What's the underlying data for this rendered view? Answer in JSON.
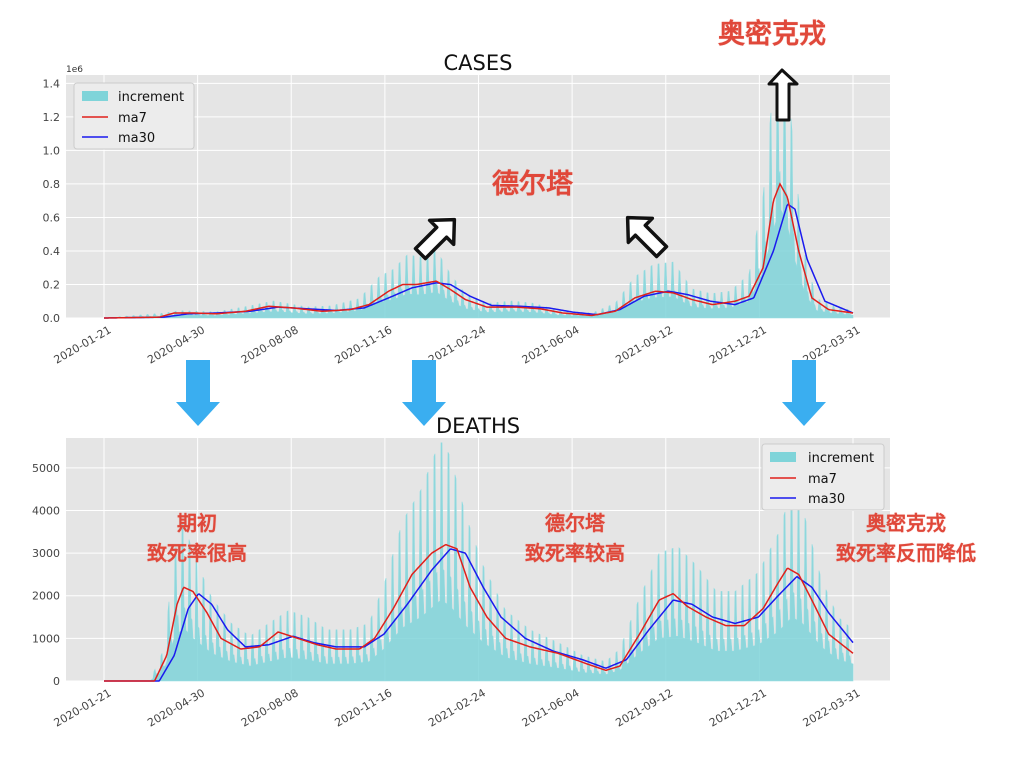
{
  "chart_data": [
    {
      "type": "area",
      "title": "CASES",
      "y_offset_label": "1e6",
      "xlabel": "",
      "ylabel": "",
      "ylim": [
        0,
        1.45
      ],
      "yticks": [
        "0.0",
        "0.2",
        "0.4",
        "0.6",
        "0.8",
        "1.0",
        "1.2",
        "1.4"
      ],
      "xticks": [
        "2020-01-21",
        "2020-04-30",
        "2020-08-08",
        "2020-11-16",
        "2021-02-24",
        "2021-06-04",
        "2021-09-12",
        "2021-12-21",
        "2022-03-31"
      ],
      "grid": true,
      "legend_position": "top-left",
      "series": [
        {
          "name": "increment",
          "kind": "bar",
          "color": "#7fd4d9",
          "points": [
            [
              "2020-01-21",
              0
            ],
            [
              "2020-03-25",
              0.02
            ],
            [
              "2020-04-10",
              0.03
            ],
            [
              "2020-05-20",
              0.025
            ],
            [
              "2020-06-25",
              0.05
            ],
            [
              "2020-07-20",
              0.07
            ],
            [
              "2020-08-25",
              0.045
            ],
            [
              "2020-09-20",
              0.05
            ],
            [
              "2020-10-20",
              0.08
            ],
            [
              "2020-11-10",
              0.17
            ],
            [
              "2020-11-25",
              0.2
            ],
            [
              "2020-12-10",
              0.26
            ],
            [
              "2020-12-25",
              0.25
            ],
            [
              "2021-01-10",
              0.28
            ],
            [
              "2021-01-25",
              0.18
            ],
            [
              "2021-02-10",
              0.1
            ],
            [
              "2021-03-05",
              0.06
            ],
            [
              "2021-04-01",
              0.07
            ],
            [
              "2021-04-25",
              0.06
            ],
            [
              "2021-05-20",
              0.03
            ],
            [
              "2021-06-25",
              0.02
            ],
            [
              "2021-07-20",
              0.06
            ],
            [
              "2021-08-10",
              0.17
            ],
            [
              "2021-08-30",
              0.22
            ],
            [
              "2021-09-20",
              0.23
            ],
            [
              "2021-10-10",
              0.12
            ],
            [
              "2021-10-30",
              0.1
            ],
            [
              "2021-11-20",
              0.11
            ],
            [
              "2021-12-10",
              0.18
            ],
            [
              "2021-12-25",
              0.5
            ],
            [
              "2022-01-05",
              0.95
            ],
            [
              "2022-01-12",
              1.2
            ],
            [
              "2022-01-20",
              1.0
            ],
            [
              "2022-01-28",
              0.62
            ],
            [
              "2022-02-08",
              0.25
            ],
            [
              "2022-02-20",
              0.08
            ],
            [
              "2022-03-10",
              0.05
            ],
            [
              "2022-03-31",
              0.03
            ]
          ]
        },
        {
          "name": "ma7",
          "kind": "line",
          "color": "#e0201b",
          "points": [
            [
              "2020-01-21",
              0
            ],
            [
              "2020-03-20",
              0.005
            ],
            [
              "2020-04-05",
              0.03
            ],
            [
              "2020-04-25",
              0.03
            ],
            [
              "2020-05-20",
              0.025
            ],
            [
              "2020-06-20",
              0.04
            ],
            [
              "2020-07-15",
              0.07
            ],
            [
              "2020-08-10",
              0.06
            ],
            [
              "2020-09-10",
              0.04
            ],
            [
              "2020-10-10",
              0.05
            ],
            [
              "2020-10-30",
              0.08
            ],
            [
              "2020-11-20",
              0.16
            ],
            [
              "2020-12-05",
              0.2
            ],
            [
              "2020-12-20",
              0.2
            ],
            [
              "2021-01-10",
              0.22
            ],
            [
              "2021-01-25",
              0.17
            ],
            [
              "2021-02-10",
              0.11
            ],
            [
              "2021-03-05",
              0.065
            ],
            [
              "2021-04-05",
              0.065
            ],
            [
              "2021-05-01",
              0.055
            ],
            [
              "2021-05-25",
              0.03
            ],
            [
              "2021-06-25",
              0.015
            ],
            [
              "2021-07-20",
              0.04
            ],
            [
              "2021-08-10",
              0.12
            ],
            [
              "2021-09-01",
              0.16
            ],
            [
              "2021-09-20",
              0.15
            ],
            [
              "2021-10-10",
              0.11
            ],
            [
              "2021-11-01",
              0.08
            ],
            [
              "2021-11-25",
              0.1
            ],
            [
              "2021-12-10",
              0.13
            ],
            [
              "2021-12-25",
              0.3
            ],
            [
              "2022-01-05",
              0.7
            ],
            [
              "2022-01-12",
              0.8
            ],
            [
              "2022-01-20",
              0.72
            ],
            [
              "2022-02-01",
              0.4
            ],
            [
              "2022-02-15",
              0.12
            ],
            [
              "2022-03-05",
              0.05
            ],
            [
              "2022-03-31",
              0.03
            ]
          ]
        },
        {
          "name": "ma30",
          "kind": "line",
          "color": "#1a1aee",
          "points": [
            [
              "2020-01-21",
              0
            ],
            [
              "2020-03-25",
              0.005
            ],
            [
              "2020-04-20",
              0.025
            ],
            [
              "2020-05-20",
              0.03
            ],
            [
              "2020-06-25",
              0.04
            ],
            [
              "2020-07-25",
              0.065
            ],
            [
              "2020-08-25",
              0.055
            ],
            [
              "2020-09-25",
              0.045
            ],
            [
              "2020-10-25",
              0.06
            ],
            [
              "2020-11-20",
              0.12
            ],
            [
              "2020-12-15",
              0.18
            ],
            [
              "2021-01-10",
              0.21
            ],
            [
              "2021-01-25",
              0.2
            ],
            [
              "2021-02-15",
              0.13
            ],
            [
              "2021-03-10",
              0.075
            ],
            [
              "2021-04-10",
              0.07
            ],
            [
              "2021-05-10",
              0.06
            ],
            [
              "2021-06-05",
              0.035
            ],
            [
              "2021-07-01",
              0.02
            ],
            [
              "2021-07-25",
              0.05
            ],
            [
              "2021-08-20",
              0.13
            ],
            [
              "2021-09-15",
              0.16
            ],
            [
              "2021-10-05",
              0.14
            ],
            [
              "2021-10-30",
              0.1
            ],
            [
              "2021-11-25",
              0.08
            ],
            [
              "2021-12-15",
              0.12
            ],
            [
              "2022-01-05",
              0.4
            ],
            [
              "2022-01-20",
              0.68
            ],
            [
              "2022-01-28",
              0.65
            ],
            [
              "2022-02-10",
              0.35
            ],
            [
              "2022-03-01",
              0.1
            ],
            [
              "2022-03-31",
              0.03
            ]
          ]
        }
      ]
    },
    {
      "type": "area",
      "title": "DEATHS",
      "xlabel": "",
      "ylabel": "",
      "ylim": [
        0,
        5700
      ],
      "yticks": [
        "0",
        "1000",
        "2000",
        "3000",
        "4000",
        "5000"
      ],
      "xticks": [
        "2020-01-21",
        "2020-04-30",
        "2020-08-08",
        "2020-11-16",
        "2021-02-24",
        "2021-06-04",
        "2021-09-12",
        "2021-12-21",
        "2022-03-31"
      ],
      "grid": true,
      "legend_position": "top-right",
      "series": [
        {
          "name": "increment",
          "kind": "bar",
          "color": "#7fd4d9",
          "points": [
            [
              "2020-01-21",
              0
            ],
            [
              "2020-03-10",
              0
            ],
            [
              "2020-03-25",
              500
            ],
            [
              "2020-04-05",
              2000
            ],
            [
              "2020-04-15",
              2500
            ],
            [
              "2020-04-25",
              2000
            ],
            [
              "2020-05-15",
              1300
            ],
            [
              "2020-06-05",
              900
            ],
            [
              "2020-06-25",
              700
            ],
            [
              "2020-07-15",
              900
            ],
            [
              "2020-08-05",
              1100
            ],
            [
              "2020-08-25",
              1000
            ],
            [
              "2020-09-15",
              800
            ],
            [
              "2020-10-10",
              800
            ],
            [
              "2020-10-30",
              900
            ],
            [
              "2020-11-15",
              1500
            ],
            [
              "2020-12-05",
              2500
            ],
            [
              "2020-12-25",
              3000
            ],
            [
              "2021-01-15",
              3800
            ],
            [
              "2021-01-25",
              3500
            ],
            [
              "2021-02-10",
              2600
            ],
            [
              "2021-03-01",
              1800
            ],
            [
              "2021-03-25",
              1100
            ],
            [
              "2021-04-20",
              800
            ],
            [
              "2021-05-20",
              600
            ],
            [
              "2021-06-15",
              400
            ],
            [
              "2021-07-10",
              300
            ],
            [
              "2021-07-25",
              500
            ],
            [
              "2021-08-15",
              1300
            ],
            [
              "2021-09-05",
              2000
            ],
            [
              "2021-09-25",
              2100
            ],
            [
              "2021-10-15",
              1800
            ],
            [
              "2021-11-05",
              1400
            ],
            [
              "2021-11-25",
              1400
            ],
            [
              "2021-12-20",
              1700
            ],
            [
              "2022-01-10",
              2300
            ],
            [
              "2022-01-25",
              3000
            ],
            [
              "2022-02-05",
              2700
            ],
            [
              "2022-02-25",
              1600
            ],
            [
              "2022-03-15",
              1000
            ],
            [
              "2022-03-31",
              800
            ]
          ]
        },
        {
          "name": "ma7",
          "kind": "line",
          "color": "#e0201b",
          "points": [
            [
              "2020-01-21",
              0
            ],
            [
              "2020-03-15",
              0
            ],
            [
              "2020-03-28",
              600
            ],
            [
              "2020-04-08",
              1800
            ],
            [
              "2020-04-15",
              2200
            ],
            [
              "2020-04-25",
              2100
            ],
            [
              "2020-05-10",
              1600
            ],
            [
              "2020-05-25",
              1000
            ],
            [
              "2020-06-15",
              750
            ],
            [
              "2020-07-05",
              800
            ],
            [
              "2020-07-25",
              1150
            ],
            [
              "2020-08-15",
              1000
            ],
            [
              "2020-09-05",
              850
            ],
            [
              "2020-09-25",
              750
            ],
            [
              "2020-10-20",
              750
            ],
            [
              "2020-11-05",
              1000
            ],
            [
              "2020-11-25",
              1700
            ],
            [
              "2020-12-15",
              2500
            ],
            [
              "2021-01-05",
              3000
            ],
            [
              "2021-01-20",
              3200
            ],
            [
              "2021-02-01",
              3100
            ],
            [
              "2021-02-15",
              2200
            ],
            [
              "2021-03-05",
              1500
            ],
            [
              "2021-03-25",
              1000
            ],
            [
              "2021-04-20",
              800
            ],
            [
              "2021-05-20",
              650
            ],
            [
              "2021-06-20",
              400
            ],
            [
              "2021-07-10",
              250
            ],
            [
              "2021-07-25",
              350
            ],
            [
              "2021-08-15",
              1100
            ],
            [
              "2021-09-05",
              1900
            ],
            [
              "2021-09-20",
              2050
            ],
            [
              "2021-10-05",
              1750
            ],
            [
              "2021-10-25",
              1500
            ],
            [
              "2021-11-15",
              1300
            ],
            [
              "2021-12-05",
              1300
            ],
            [
              "2021-12-25",
              1700
            ],
            [
              "2022-01-10",
              2300
            ],
            [
              "2022-01-20",
              2650
            ],
            [
              "2022-02-01",
              2500
            ],
            [
              "2022-02-15",
              1900
            ],
            [
              "2022-03-05",
              1100
            ],
            [
              "2022-03-31",
              650
            ]
          ]
        },
        {
          "name": "ma30",
          "kind": "line",
          "color": "#1a1aee",
          "points": [
            [
              "2020-01-21",
              0
            ],
            [
              "2020-03-20",
              0
            ],
            [
              "2020-04-05",
              600
            ],
            [
              "2020-04-20",
              1700
            ],
            [
              "2020-05-01",
              2050
            ],
            [
              "2020-05-15",
              1800
            ],
            [
              "2020-06-01",
              1200
            ],
            [
              "2020-06-20",
              800
            ],
            [
              "2020-07-15",
              850
            ],
            [
              "2020-08-10",
              1050
            ],
            [
              "2020-09-01",
              900
            ],
            [
              "2020-09-25",
              800
            ],
            [
              "2020-10-25",
              800
            ],
            [
              "2020-11-15",
              1100
            ],
            [
              "2020-12-10",
              1800
            ],
            [
              "2021-01-05",
              2600
            ],
            [
              "2021-01-25",
              3100
            ],
            [
              "2021-02-10",
              3000
            ],
            [
              "2021-03-01",
              2200
            ],
            [
              "2021-03-20",
              1500
            ],
            [
              "2021-04-15",
              1000
            ],
            [
              "2021-05-15",
              700
            ],
            [
              "2021-06-15",
              500
            ],
            [
              "2021-07-10",
              300
            ],
            [
              "2021-08-01",
              500
            ],
            [
              "2021-08-25",
              1200
            ],
            [
              "2021-09-20",
              1900
            ],
            [
              "2021-10-10",
              1800
            ],
            [
              "2021-11-01",
              1500
            ],
            [
              "2021-11-25",
              1350
            ],
            [
              "2021-12-20",
              1500
            ],
            [
              "2022-01-10",
              2000
            ],
            [
              "2022-01-30",
              2450
            ],
            [
              "2022-02-15",
              2200
            ],
            [
              "2022-03-05",
              1600
            ],
            [
              "2022-03-31",
              900
            ]
          ]
        }
      ]
    }
  ],
  "annotations": {
    "omicron_top": "奥密克戎",
    "delta_top": "德尔塔",
    "early_line1": "期初",
    "early_line2": "致死率很高",
    "delta_line1": "德尔塔",
    "delta_line2": "致死率较高",
    "omicron_line1": "奥密克戎",
    "omicron_line2": "致死率反而降低"
  },
  "colors": {
    "annotation_text": "#e0483a",
    "down_arrow": "#3aaef0",
    "plot_background": "#e5e5e5"
  },
  "icons": [
    "up-arrow-icon",
    "up-left-arrow-icon",
    "down-arrow-icon"
  ]
}
